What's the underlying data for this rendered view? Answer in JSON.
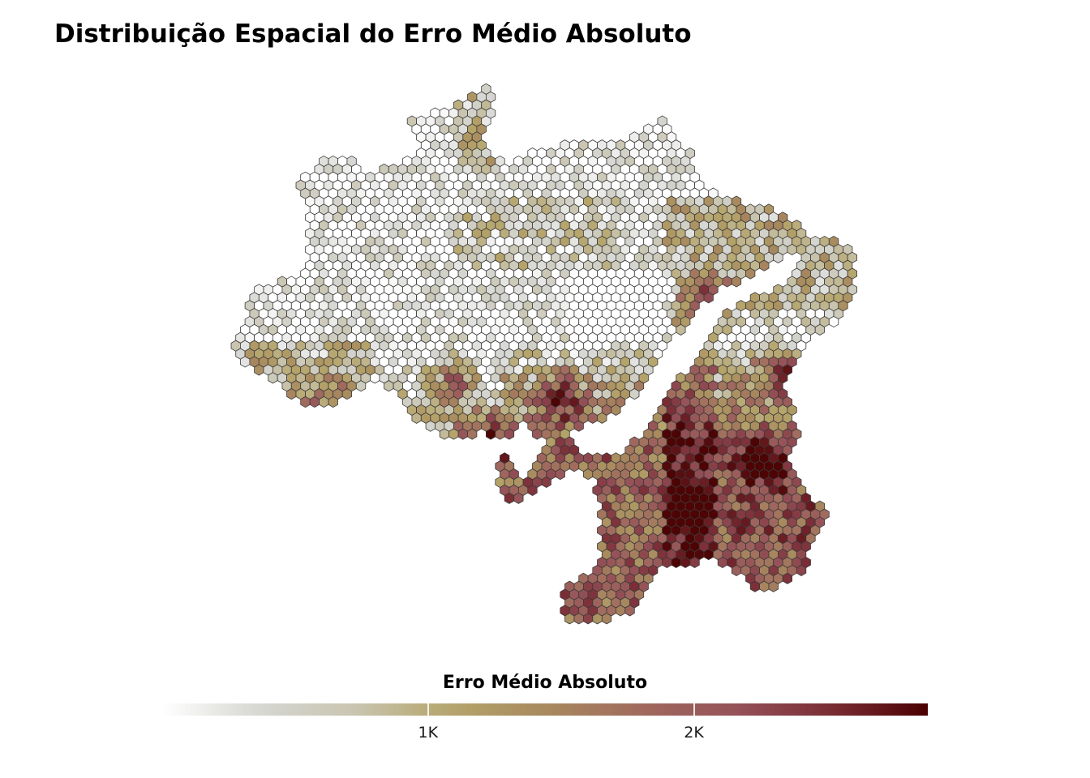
{
  "title": "Distribuição Espacial do Erro Médio Absoluto",
  "legend": {
    "title": "Erro Médio Absoluto",
    "ticks": [
      {
        "label": "1K",
        "value": 1000
      },
      {
        "label": "2K",
        "value": 2000
      }
    ],
    "min": 0,
    "max": 2880,
    "colors": [
      "#ffffff",
      "#d6d6d2",
      "#c9c5b0",
      "#b5a46a",
      "#a88a5e",
      "#a0695e",
      "#955258",
      "#7a2c35",
      "#4a0000"
    ]
  },
  "map": {
    "region": "Brazil",
    "cell_shape": "hexagon",
    "cell_outline": "#3a3a3a",
    "pattern": "low error (light grey/white) across the north and Amazon; higher error (brown to dark red) in the south, southeast and northeast coast; darkest cells in the northeast"
  }
}
